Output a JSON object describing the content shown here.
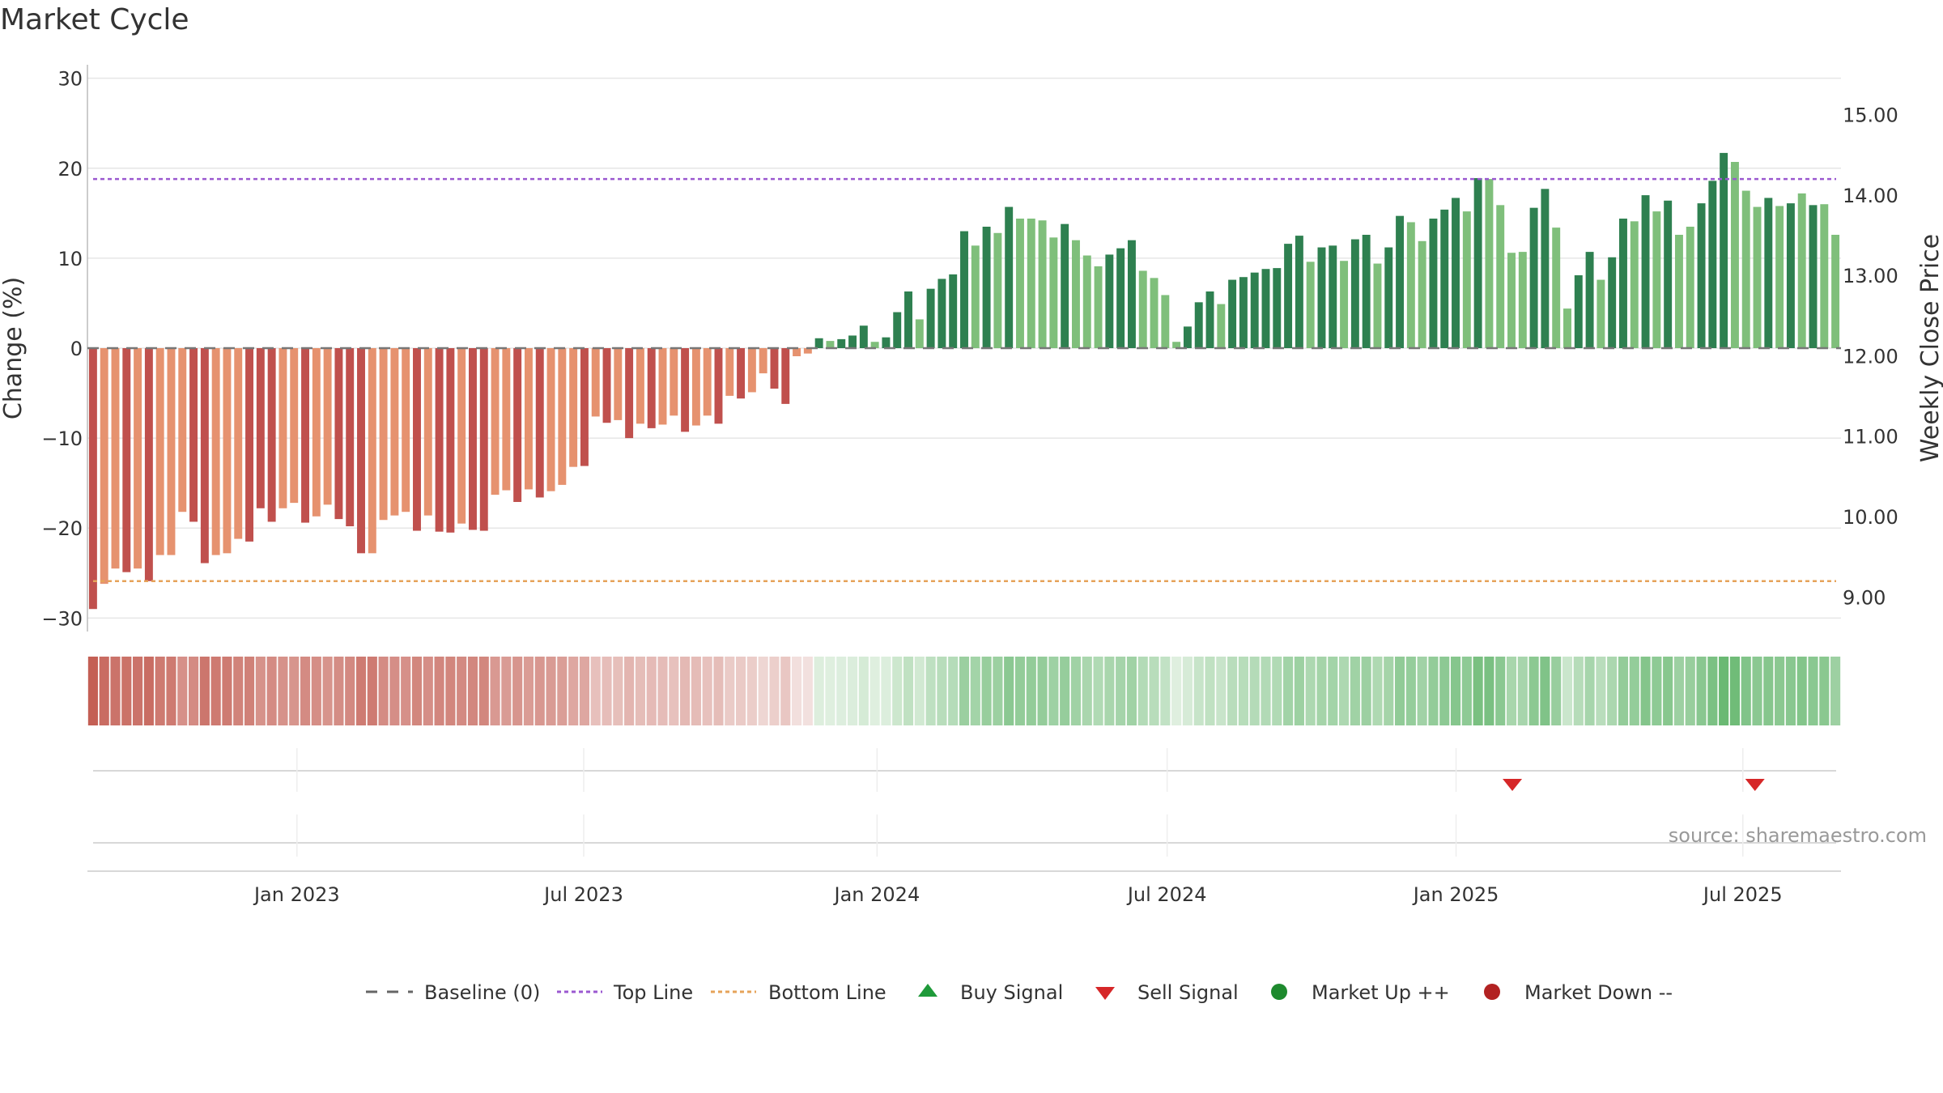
{
  "colors": {
    "neg_dark": "#c0504d",
    "neg_light": "#e6926f",
    "pos_dark": "#2e8050",
    "pos_light": "#7fbf7b",
    "top_line": "#9b59d0",
    "bottom_line": "#e6a35a",
    "baseline": "#777777",
    "grid": "#e6e6e6",
    "buy": "#1f9a3a",
    "sell": "#d62728",
    "up": "#1e8a2e",
    "down": "#b22222"
  },
  "chart_data": {
    "type": "bar",
    "title": "Market Cycle",
    "ylabel_left": "Change (%)",
    "ylabel_right": "Weekly Close Price",
    "ylim_left": [
      -31.5,
      31.5
    ],
    "ylim_right": [
      8.57,
      15.62
    ],
    "left_ticks": [
      {
        "value": 30,
        "label": "30"
      },
      {
        "value": 20,
        "label": "20"
      },
      {
        "value": 10,
        "label": "10"
      },
      {
        "value": 0,
        "label": "0"
      },
      {
        "value": -10,
        "label": "−10"
      },
      {
        "value": -20,
        "label": "−20"
      },
      {
        "value": -30,
        "label": "−30"
      }
    ],
    "right_ticks": [
      {
        "value": 15,
        "label": "15.00"
      },
      {
        "value": 14,
        "label": "14.00"
      },
      {
        "value": 13,
        "label": "13.00"
      },
      {
        "value": 12,
        "label": "12.00"
      },
      {
        "value": 11,
        "label": "11.00"
      },
      {
        "value": 10,
        "label": "10.00"
      },
      {
        "value": 9,
        "label": "9.00"
      }
    ],
    "x_start_week": -19,
    "x_weeks_span": 159.0,
    "x_ticks": [
      {
        "week": 0,
        "label": "Jan 2023"
      },
      {
        "week": 26,
        "label": "Jul 2023"
      },
      {
        "week": 52.6,
        "label": "Jan 2024"
      },
      {
        "week": 78.9,
        "label": "Jul 2024"
      },
      {
        "week": 105.1,
        "label": "Jan 2025"
      },
      {
        "week": 131.1,
        "label": "Jul 2025"
      }
    ],
    "top_line": 18.8,
    "bottom_line": -25.9,
    "baseline": 0,
    "values": [
      -29.0,
      -26.2,
      -24.5,
      -24.9,
      -24.5,
      -25.9,
      -23.0,
      -23.0,
      -18.2,
      -19.3,
      -23.9,
      -23.0,
      -22.8,
      -21.2,
      -21.5,
      -17.8,
      -19.3,
      -17.8,
      -17.2,
      -19.4,
      -18.7,
      -17.4,
      -19.0,
      -19.8,
      -22.8,
      -22.8,
      -19.1,
      -18.6,
      -18.2,
      -20.3,
      -18.6,
      -20.4,
      -20.5,
      -19.5,
      -20.2,
      -20.3,
      -16.3,
      -15.8,
      -17.1,
      -15.7,
      -16.6,
      -15.9,
      -15.2,
      -13.2,
      -13.1,
      -7.6,
      -8.3,
      -8.0,
      -10.0,
      -8.4,
      -8.9,
      -8.5,
      -7.5,
      -9.3,
      -8.6,
      -7.5,
      -8.4,
      -5.3,
      -5.6,
      -4.9,
      -2.8,
      -4.5,
      -6.2,
      -0.9,
      -0.6,
      1.1,
      0.8,
      1.0,
      1.4,
      2.5,
      0.7,
      1.2,
      4.0,
      6.3,
      3.2,
      6.6,
      7.7,
      8.2,
      13.0,
      11.4,
      13.5,
      12.8,
      15.7,
      14.4,
      14.4,
      14.2,
      12.3,
      13.8,
      12.0,
      10.3,
      9.1,
      10.4,
      11.1,
      12.0,
      8.6,
      7.8,
      5.9,
      0.7,
      2.4,
      5.1,
      6.3,
      4.9,
      7.6,
      7.9,
      8.4,
      8.8,
      8.9,
      11.6,
      12.5,
      9.6,
      11.2,
      11.4,
      9.7,
      12.1,
      12.6,
      9.4,
      11.2,
      14.7,
      14.0,
      11.9,
      14.4,
      15.4,
      16.7,
      15.2,
      18.9,
      18.8,
      15.9,
      10.6,
      10.7,
      15.6,
      17.7,
      13.4,
      4.4,
      8.1,
      10.7,
      7.6,
      10.1,
      14.4,
      14.1,
      17.0,
      15.2,
      16.4,
      12.6,
      13.5,
      16.1,
      18.6,
      21.7,
      20.7,
      17.5,
      15.7,
      16.7,
      15.8,
      16.1,
      17.2,
      15.9,
      16.0,
      12.6
    ],
    "bar_shade": [
      1,
      0,
      0,
      1,
      0,
      1,
      0,
      0,
      0,
      1,
      1,
      0,
      0,
      0,
      1,
      1,
      1,
      0,
      0,
      1,
      0,
      0,
      1,
      1,
      1,
      0,
      0,
      0,
      0,
      1,
      0,
      1,
      1,
      0,
      1,
      1,
      0,
      0,
      1,
      0,
      1,
      0,
      0,
      0,
      1,
      0,
      1,
      0,
      1,
      0,
      1,
      0,
      0,
      1,
      0,
      0,
      1,
      0,
      1,
      0,
      0,
      1,
      1,
      0,
      0,
      1,
      0,
      1,
      1,
      1,
      0,
      1,
      1,
      1,
      0,
      1,
      1,
      1,
      1,
      0,
      1,
      0,
      1,
      0,
      0,
      0,
      0,
      1,
      0,
      0,
      0,
      1,
      1,
      1,
      0,
      0,
      0,
      0,
      1,
      1,
      1,
      0,
      1,
      1,
      1,
      1,
      1,
      1,
      1,
      0,
      1,
      1,
      0,
      1,
      1,
      0,
      1,
      1,
      0,
      0,
      1,
      1,
      1,
      0,
      1,
      0,
      0,
      0,
      0,
      1,
      1,
      0,
      0,
      1,
      1,
      0,
      1,
      1,
      0,
      1,
      0,
      1,
      0,
      0,
      1,
      1,
      1,
      0,
      0,
      0,
      1,
      0,
      1,
      0,
      1,
      0,
      0
    ],
    "sell_signals_week": [
      110.2,
      132.2
    ],
    "buy_signals_week": [],
    "source": "source: sharemaestro.com",
    "legend": [
      {
        "key": "baseline",
        "label": "Baseline (0)"
      },
      {
        "key": "top",
        "label": "Top Line"
      },
      {
        "key": "bottom",
        "label": "Bottom Line"
      },
      {
        "key": "buy",
        "label": "Buy Signal"
      },
      {
        "key": "sell",
        "label": "Sell Signal"
      },
      {
        "key": "up",
        "label": "Market Up ++"
      },
      {
        "key": "down",
        "label": "Market Down --"
      }
    ]
  }
}
